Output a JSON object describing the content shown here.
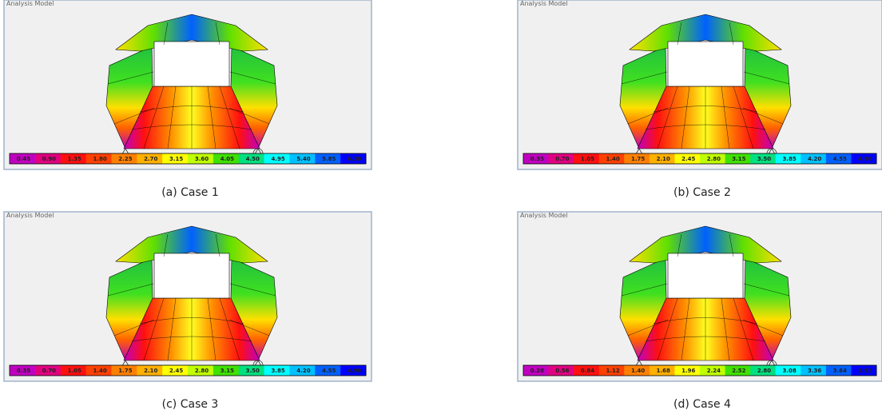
{
  "panels": [
    {
      "header": "Analysis Model",
      "legend": [
        "0.45",
        "0.90",
        "1.35",
        "1.80",
        "2.25",
        "2.70",
        "3.15",
        "3.60",
        "4.05",
        "4.50",
        "4.95",
        "5.40",
        "5.85",
        "6.30"
      ],
      "caption": "(a) Case 1"
    },
    {
      "header": "Analysis Model",
      "legend": [
        "0.35",
        "0.70",
        "1.05",
        "1.40",
        "1.75",
        "2.10",
        "2.45",
        "2.80",
        "3.15",
        "3.50",
        "3.85",
        "4.20",
        "4.55",
        "4.90"
      ],
      "caption": "(b) Case 2"
    },
    {
      "header": "Analysis Model",
      "legend": [
        "0.35",
        "0.70",
        "1.05",
        "1.40",
        "1.75",
        "2.10",
        "2.45",
        "2.80",
        "3.15",
        "3.50",
        "3.85",
        "4.20",
        "4.55",
        "4.90"
      ],
      "caption": "(c) Case 3"
    },
    {
      "header": "Analysis Model",
      "legend": [
        "0.28",
        "0.56",
        "0.84",
        "1.12",
        "1.40",
        "1.68",
        "1.96",
        "2.24",
        "2.52",
        "2.80",
        "3.08",
        "3.36",
        "3.64",
        "3.92"
      ],
      "caption": "(d) Case 4"
    }
  ]
}
